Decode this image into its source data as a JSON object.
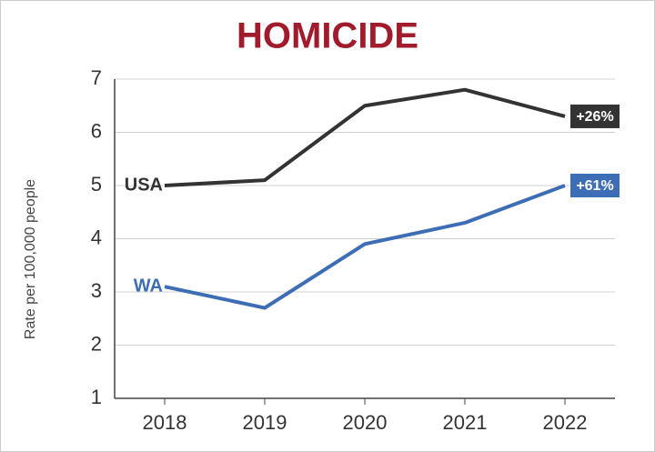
{
  "chart_data": {
    "type": "line",
    "title": "HOMICIDE",
    "y_label": "Rate per 100,000 people",
    "categories": [
      "2018",
      "2019",
      "2020",
      "2021",
      "2022"
    ],
    "series": [
      {
        "name": "USA",
        "color": "#333333",
        "values": [
          5.0,
          5.1,
          6.5,
          6.8,
          6.3
        ],
        "end_label": "+26%"
      },
      {
        "name": "WA",
        "color": "#3d6db5",
        "values": [
          3.1,
          2.7,
          3.9,
          4.3,
          5.0
        ],
        "end_label": "+61%"
      }
    ],
    "ylim": [
      1,
      7
    ],
    "yticks": [
      1,
      2,
      3,
      4,
      5,
      6,
      7
    ],
    "grid": true
  }
}
